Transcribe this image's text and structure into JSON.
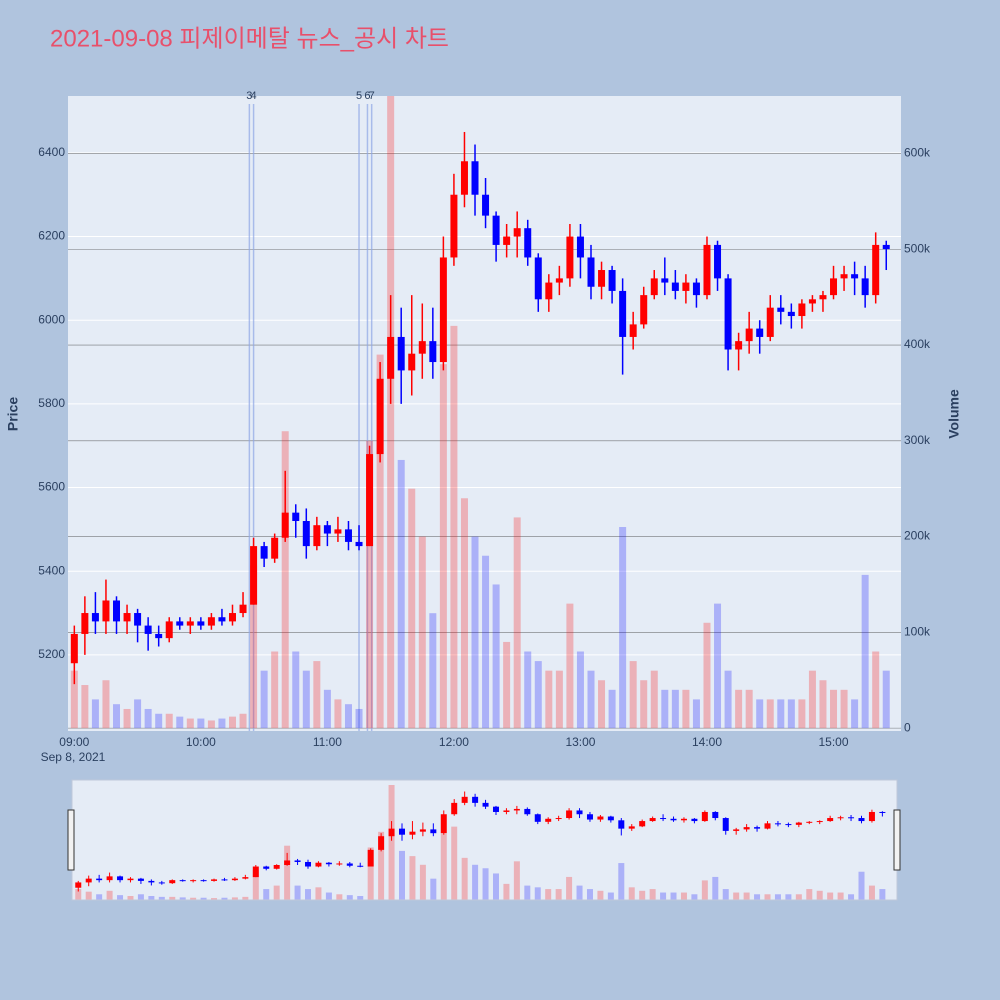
{
  "chart_data": {
    "type": "candlestick",
    "title": "2021-09-08 피제이메탈 뉴스_공시 차트",
    "y_label": "Price",
    "y2_label": "Volume",
    "x_date_label": "Sep 8, 2021",
    "increasing_color": "#ff0000",
    "decreasing_color": "#0000ff",
    "x": [
      "09:00",
      "09:05",
      "09:10",
      "09:15",
      "09:20",
      "09:25",
      "09:30",
      "09:35",
      "09:40",
      "09:45",
      "09:50",
      "09:55",
      "10:00",
      "10:05",
      "10:10",
      "10:15",
      "10:20",
      "10:25",
      "10:30",
      "10:35",
      "10:40",
      "10:45",
      "10:50",
      "10:55",
      "11:00",
      "11:05",
      "11:10",
      "11:15",
      "11:20",
      "11:25",
      "11:30",
      "11:35",
      "11:40",
      "11:45",
      "11:50",
      "11:55",
      "12:00",
      "12:05",
      "12:10",
      "12:15",
      "12:20",
      "12:25",
      "12:30",
      "12:35",
      "12:40",
      "12:45",
      "12:50",
      "12:55",
      "13:00",
      "13:05",
      "13:10",
      "13:15",
      "13:20",
      "13:25",
      "13:30",
      "13:35",
      "13:40",
      "13:45",
      "13:50",
      "13:55",
      "14:00",
      "14:05",
      "14:10",
      "14:15",
      "14:20",
      "14:25",
      "14:30",
      "14:35",
      "14:40",
      "14:45",
      "14:50",
      "14:55",
      "15:00",
      "15:05",
      "15:10",
      "15:15",
      "15:20",
      "15:25"
    ],
    "open": [
      5180,
      5250,
      5300,
      5280,
      5330,
      5280,
      5300,
      5270,
      5250,
      5240,
      5280,
      5270,
      5280,
      5270,
      5290,
      5280,
      5300,
      5320,
      5460,
      5430,
      5480,
      5540,
      5520,
      5460,
      5510,
      5490,
      5500,
      5470,
      5460,
      5680,
      5860,
      5960,
      5880,
      5920,
      5950,
      5900,
      6150,
      6300,
      6380,
      6300,
      6250,
      6180,
      6200,
      6220,
      6150,
      6050,
      6090,
      6100,
      6200,
      6150,
      6080,
      6120,
      6070,
      5960,
      5990,
      6060,
      6100,
      6090,
      6070,
      6090,
      6060,
      6180,
      6100,
      5930,
      5950,
      5980,
      5960,
      6030,
      6020,
      6010,
      6040,
      6050,
      6060,
      6100,
      6110,
      6100,
      6060,
      6180
    ],
    "high": [
      5270,
      5340,
      5350,
      5380,
      5340,
      5320,
      5310,
      5290,
      5270,
      5290,
      5290,
      5290,
      5290,
      5300,
      5310,
      5320,
      5350,
      5480,
      5470,
      5490,
      5640,
      5560,
      5550,
      5530,
      5520,
      5530,
      5520,
      5510,
      5700,
      5900,
      6060,
      6030,
      6060,
      6040,
      6030,
      6200,
      6350,
      6450,
      6420,
      6340,
      6260,
      6230,
      6260,
      6240,
      6160,
      6110,
      6130,
      6230,
      6230,
      6180,
      6140,
      6130,
      6100,
      6020,
      6080,
      6120,
      6150,
      6120,
      6110,
      6100,
      6200,
      6190,
      6110,
      5970,
      6020,
      6000,
      6060,
      6060,
      6040,
      6050,
      6060,
      6070,
      6130,
      6130,
      6140,
      6130,
      6210,
      6190
    ],
    "low": [
      5130,
      5200,
      5250,
      5250,
      5250,
      5250,
      5230,
      5210,
      5220,
      5230,
      5260,
      5250,
      5260,
      5260,
      5270,
      5270,
      5290,
      5320,
      5410,
      5420,
      5470,
      5480,
      5430,
      5450,
      5460,
      5470,
      5450,
      5450,
      5460,
      5660,
      5800,
      5800,
      5820,
      5860,
      5860,
      5880,
      6130,
      6270,
      6250,
      6220,
      6140,
      6150,
      6150,
      6130,
      6020,
      6020,
      6060,
      6080,
      6100,
      6050,
      6050,
      6040,
      5870,
      5930,
      5980,
      6050,
      6060,
      6050,
      6040,
      6030,
      6050,
      6070,
      5880,
      5880,
      5920,
      5920,
      5950,
      5990,
      5980,
      5980,
      6020,
      6020,
      6050,
      6070,
      6060,
      6030,
      6040,
      6120
    ],
    "close": [
      5250,
      5300,
      5280,
      5330,
      5280,
      5300,
      5270,
      5250,
      5240,
      5280,
      5270,
      5280,
      5270,
      5290,
      5280,
      5300,
      5320,
      5460,
      5430,
      5480,
      5540,
      5520,
      5460,
      5510,
      5490,
      5500,
      5470,
      5460,
      5680,
      5860,
      5960,
      5880,
      5920,
      5950,
      5900,
      6150,
      6300,
      6380,
      6300,
      6250,
      6180,
      6200,
      6220,
      6150,
      6050,
      6090,
      6100,
      6200,
      6150,
      6080,
      6120,
      6070,
      5960,
      5990,
      6060,
      6100,
      6090,
      6070,
      6090,
      6060,
      6180,
      6100,
      5930,
      5950,
      5980,
      5960,
      6030,
      6020,
      6010,
      6040,
      6050,
      6060,
      6100,
      6110,
      6100,
      6060,
      6180,
      6170
    ],
    "volume": [
      60000,
      45000,
      30000,
      50000,
      25000,
      20000,
      30000,
      20000,
      15000,
      15000,
      12000,
      10000,
      10000,
      8000,
      10000,
      12000,
      15000,
      170000,
      60000,
      80000,
      310000,
      80000,
      60000,
      70000,
      40000,
      30000,
      25000,
      20000,
      300000,
      390000,
      660000,
      280000,
      250000,
      200000,
      120000,
      380000,
      420000,
      240000,
      200000,
      180000,
      150000,
      90000,
      220000,
      80000,
      70000,
      60000,
      60000,
      130000,
      80000,
      60000,
      50000,
      40000,
      210000,
      70000,
      50000,
      60000,
      40000,
      40000,
      40000,
      30000,
      110000,
      130000,
      60000,
      40000,
      40000,
      30000,
      30000,
      30000,
      30000,
      30000,
      60000,
      50000,
      40000,
      40000,
      30000,
      160000,
      80000,
      60000
    ],
    "news": [
      {
        "label": "3",
        "x": "10:23"
      },
      {
        "label": "4",
        "x": "10:25"
      },
      {
        "label": "5",
        "x": "11:15"
      },
      {
        "label": "6",
        "x": "11:19"
      },
      {
        "label": "7",
        "x": "11:21"
      }
    ],
    "xlim": [
      "08:57",
      "15:32"
    ],
    "xticks": [
      "09:00",
      "10:00",
      "11:00",
      "12:00",
      "13:00",
      "14:00",
      "15:00"
    ],
    "ylim": [
      5018,
      6536
    ],
    "yticks": [
      5200,
      5400,
      5600,
      5800,
      6000,
      6200,
      6400
    ],
    "y2lim": [
      -3000,
      660000
    ],
    "y2ticks": [
      0,
      {
        "value": 100000,
        "label": "100k"
      },
      {
        "value": 200000,
        "label": "200k"
      },
      {
        "value": 300000,
        "label": "300k"
      },
      {
        "value": 400000,
        "label": "400k"
      },
      {
        "value": 500000,
        "label": "500k"
      },
      {
        "value": 600000,
        "label": "600k"
      }
    ],
    "grid": true,
    "rangeslider": true
  }
}
